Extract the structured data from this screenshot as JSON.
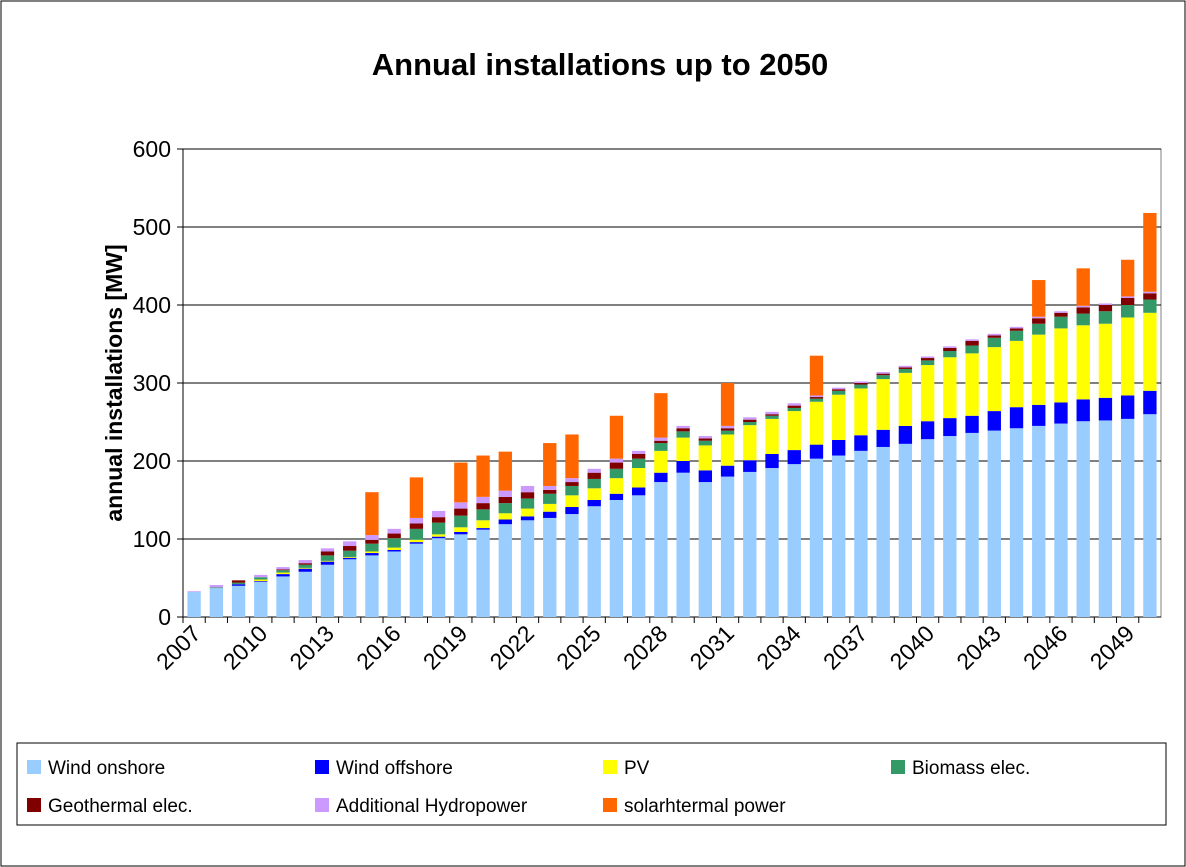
{
  "chart_data": {
    "type": "stacked_bar",
    "title": "Annual installations up to 2050",
    "y_label": "annual installations [MW]",
    "categories": [
      "2007",
      null,
      null,
      "2010",
      null,
      null,
      "2013",
      null,
      null,
      "2016",
      null,
      null,
      "2019",
      null,
      null,
      "2022",
      null,
      null,
      "2025",
      null,
      null,
      "2028",
      null,
      null,
      "2031",
      null,
      null,
      "2034",
      null,
      null,
      "2037",
      null,
      null,
      "2040",
      null,
      null,
      "2043",
      null,
      null,
      "2046",
      null,
      null,
      "2049",
      null
    ],
    "series": [
      {
        "name": "Wind onshore",
        "color": "#99ccff",
        "values": [
          32,
          37,
          40,
          45,
          52,
          58,
          67,
          74,
          79,
          84,
          94,
          101,
          106,
          112,
          119,
          124,
          127,
          132,
          142,
          150,
          156,
          173,
          185,
          173,
          180,
          186,
          191,
          196,
          203,
          207,
          213,
          218,
          222,
          228,
          232,
          236,
          239,
          242,
          245,
          248,
          251,
          252,
          254,
          260
        ]
      },
      {
        "name": "Wind offshore",
        "color": "#0000ff",
        "values": [
          0,
          0,
          2,
          1,
          3,
          4,
          4,
          2,
          3,
          2,
          2,
          2,
          3,
          2,
          6,
          5,
          8,
          9,
          8,
          8,
          10,
          12,
          15,
          15,
          14,
          15,
          18,
          18,
          18,
          20,
          20,
          22,
          23,
          23,
          23,
          22,
          25,
          27,
          27,
          27,
          28,
          29,
          30,
          30
        ]
      },
      {
        "name": "PV",
        "color": "#ffff00",
        "values": [
          0,
          0,
          0,
          2,
          2,
          1,
          1,
          1,
          2,
          3,
          3,
          3,
          6,
          10,
          8,
          10,
          10,
          15,
          15,
          20,
          25,
          28,
          30,
          32,
          40,
          45,
          45,
          50,
          55,
          58,
          60,
          65,
          68,
          72,
          78,
          80,
          82,
          85,
          90,
          95,
          95,
          95,
          100,
          100
        ]
      },
      {
        "name": "Biomass elec.",
        "color": "#339966",
        "values": [
          0,
          1,
          2,
          3,
          3,
          4,
          7,
          8,
          10,
          12,
          14,
          15,
          15,
          14,
          13,
          13,
          13,
          12,
          12,
          12,
          12,
          10,
          8,
          6,
          5,
          4,
          4,
          4,
          4,
          5,
          5,
          5,
          5,
          6,
          8,
          10,
          12,
          13,
          14,
          15,
          15,
          16,
          16,
          17
        ]
      },
      {
        "name": "Geothermal elec.",
        "color": "#800000",
        "values": [
          0,
          0,
          3,
          0,
          1,
          2,
          5,
          6,
          5,
          6,
          7,
          7,
          9,
          8,
          8,
          8,
          5,
          5,
          8,
          8,
          6,
          3,
          4,
          3,
          3,
          3,
          2,
          3,
          2,
          2,
          2,
          2,
          2,
          3,
          4,
          6,
          3,
          3,
          7,
          5,
          8,
          8,
          9,
          8
        ]
      },
      {
        "name": "Additional Hydropower",
        "color": "#cc99ff",
        "values": [
          1,
          3,
          0,
          3,
          3,
          4,
          4,
          6,
          6,
          6,
          7,
          8,
          8,
          8,
          8,
          8,
          5,
          5,
          5,
          5,
          4,
          4,
          3,
          3,
          3,
          3,
          3,
          3,
          2,
          2,
          2,
          2,
          2,
          2,
          2,
          2,
          2,
          2,
          2,
          2,
          2,
          2,
          2,
          2
        ]
      },
      {
        "name": "solarhtermal power",
        "color": "#ff6600",
        "values": [
          0,
          0,
          0,
          0,
          0,
          0,
          0,
          0,
          55,
          0,
          52,
          0,
          51,
          53,
          50,
          0,
          55,
          56,
          0,
          55,
          0,
          57,
          0,
          0,
          55,
          0,
          0,
          0,
          51,
          0,
          0,
          0,
          0,
          0,
          0,
          0,
          0,
          0,
          47,
          0,
          48,
          0,
          47,
          101
        ]
      }
    ],
    "ylim": [
      0,
      600
    ],
    "yticks": [
      0,
      100,
      200,
      300,
      400,
      500,
      600
    ],
    "grid": true,
    "legend": "bottom"
  }
}
